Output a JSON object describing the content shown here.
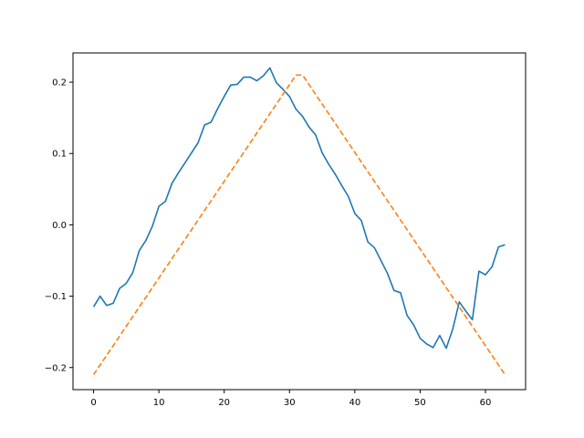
{
  "chart_data": {
    "type": "line",
    "xlim": [
      -3.15,
      66.15
    ],
    "ylim": [
      -0.231,
      0.241
    ],
    "x_ticks": [
      0,
      10,
      20,
      30,
      40,
      50,
      60
    ],
    "y_ticks": [
      -0.2,
      -0.1,
      0.0,
      0.1,
      0.2
    ],
    "x_tick_labels": [
      "0",
      "10",
      "20",
      "30",
      "40",
      "50",
      "60"
    ],
    "y_tick_labels": [
      "−0.2",
      "−0.1",
      "0.0",
      "0.1",
      "0.2"
    ],
    "grid": false,
    "series": [
      {
        "color": "#1f77b4",
        "style": "solid",
        "x": [
          0,
          1,
          2,
          3,
          4,
          5,
          6,
          7,
          8,
          9,
          10,
          11,
          12,
          13,
          14,
          15,
          16,
          17,
          18,
          19,
          20,
          21,
          22,
          23,
          24,
          25,
          26,
          27,
          28,
          29,
          30,
          31,
          32,
          33,
          34,
          35,
          36,
          37,
          38,
          39,
          40,
          41,
          42,
          43,
          44,
          45,
          46,
          47,
          48,
          49,
          50,
          51,
          52,
          53,
          54,
          55,
          56,
          57,
          58,
          59,
          60,
          61,
          62,
          63
        ],
        "values": [
          -0.115,
          -0.1,
          -0.113,
          -0.11,
          -0.089,
          -0.082,
          -0.067,
          -0.036,
          -0.022,
          -0.002,
          0.026,
          0.033,
          0.058,
          0.073,
          0.087,
          0.101,
          0.115,
          0.14,
          0.144,
          0.163,
          0.18,
          0.196,
          0.197,
          0.207,
          0.207,
          0.202,
          0.209,
          0.22,
          0.199,
          0.19,
          0.18,
          0.162,
          0.152,
          0.137,
          0.126,
          0.101,
          0.085,
          0.071,
          0.055,
          0.04,
          0.016,
          0.006,
          -0.024,
          -0.032,
          -0.05,
          -0.068,
          -0.092,
          -0.095,
          -0.127,
          -0.14,
          -0.159,
          -0.167,
          -0.172,
          -0.155,
          -0.173,
          -0.146,
          -0.108,
          -0.121,
          -0.133,
          -0.065,
          -0.07,
          -0.059,
          -0.031,
          -0.028
        ]
      },
      {
        "color": "#ff7f0e",
        "style": "dashed",
        "x": [
          0,
          31,
          32,
          63
        ],
        "values": [
          -0.21,
          0.21,
          0.21,
          -0.21
        ]
      }
    ]
  }
}
